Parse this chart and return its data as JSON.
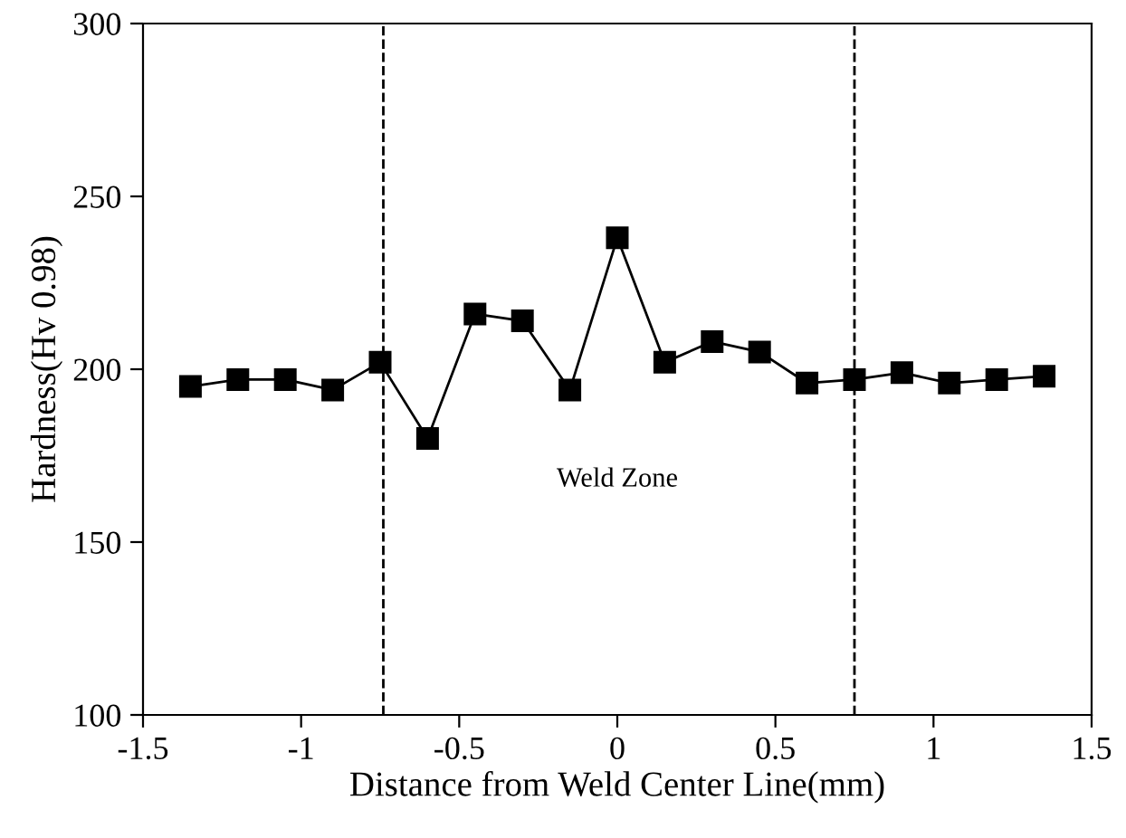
{
  "chart_data": {
    "type": "line",
    "xlabel": "Distance from Weld Center Line(mm)",
    "ylabel": "Hardness(Hv 0.98)",
    "x": [
      -1.35,
      -1.2,
      -1.05,
      -0.9,
      -0.75,
      -0.6,
      -0.45,
      -0.3,
      -0.15,
      0,
      0.15,
      0.3,
      0.45,
      0.6,
      0.75,
      0.9,
      1.05,
      1.2,
      1.35
    ],
    "series": [
      {
        "color": "#000000",
        "values": [
          195,
          197,
          197,
          194,
          202,
          180,
          216,
          214,
          194,
          238,
          202,
          208,
          205,
          196,
          197,
          199,
          196,
          197,
          198
        ]
      }
    ],
    "marker": "square",
    "line_style": "solid",
    "grid": false,
    "legend": false,
    "xlim": [
      -1.5,
      1.5
    ],
    "xticks": [
      -1.5,
      -1,
      -0.5,
      0,
      0.5,
      1,
      1.5
    ],
    "ylim": [
      100,
      300
    ],
    "yticks": [
      100,
      150,
      200,
      250,
      300
    ],
    "ref_lines": [
      {
        "axis": "x",
        "value": -0.74,
        "line_style": "dashed",
        "color": "#000000"
      },
      {
        "axis": "x",
        "value": 0.75,
        "line_style": "dashed",
        "color": "#000000"
      }
    ],
    "annotations": [
      "Weld Zone"
    ]
  }
}
